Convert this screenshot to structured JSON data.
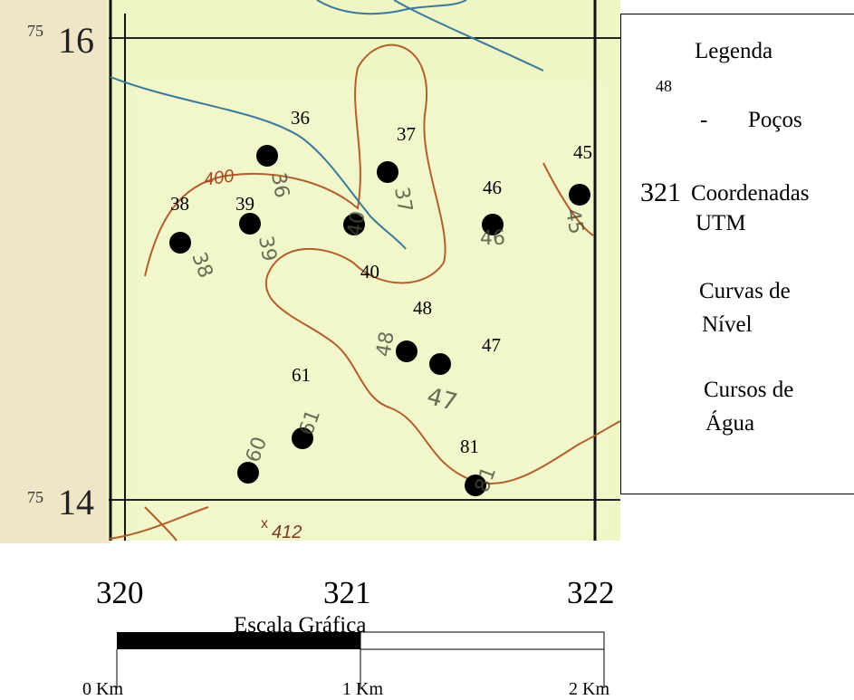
{
  "map": {
    "y_labels": [
      {
        "prefix": "75",
        "value": "16"
      },
      {
        "prefix": "75",
        "value": "14"
      }
    ],
    "contour_labels": [
      "400",
      "412"
    ],
    "contour_label_prefix": "x",
    "wells": [
      {
        "id": "36"
      },
      {
        "id": "37"
      },
      {
        "id": "38"
      },
      {
        "id": "39"
      },
      {
        "id": "40"
      },
      {
        "id": "45"
      },
      {
        "id": "46"
      },
      {
        "id": "47"
      },
      {
        "id": "48"
      },
      {
        "id": "61"
      },
      {
        "id": "81"
      },
      {
        "id": "60"
      }
    ],
    "colors": {
      "map_fill": "#eff5c4",
      "left_strip": "#efe6c8",
      "contour": "#b0602a",
      "stream": "#3a7a9a",
      "well": "#000000"
    }
  },
  "legend": {
    "title": "Legenda",
    "well_sample_number": "48",
    "wells_dash": "-",
    "wells_label": "Poços",
    "utm_sample": "321",
    "utm_label_line1": "Coordenadas",
    "utm_label_line2": "UTM",
    "contour_line1": "Curvas de",
    "contour_line2": "Nível",
    "water_line1": "Cursos de",
    "water_line2": "Água",
    "contour_color": "#7a0c0c",
    "water_color": "#0a1f8a"
  },
  "scale": {
    "coords": [
      "320",
      "321",
      "322"
    ],
    "title": "Escala Gráfica",
    "ticks": [
      "0 Km",
      "1 Km",
      "2 Km"
    ]
  }
}
